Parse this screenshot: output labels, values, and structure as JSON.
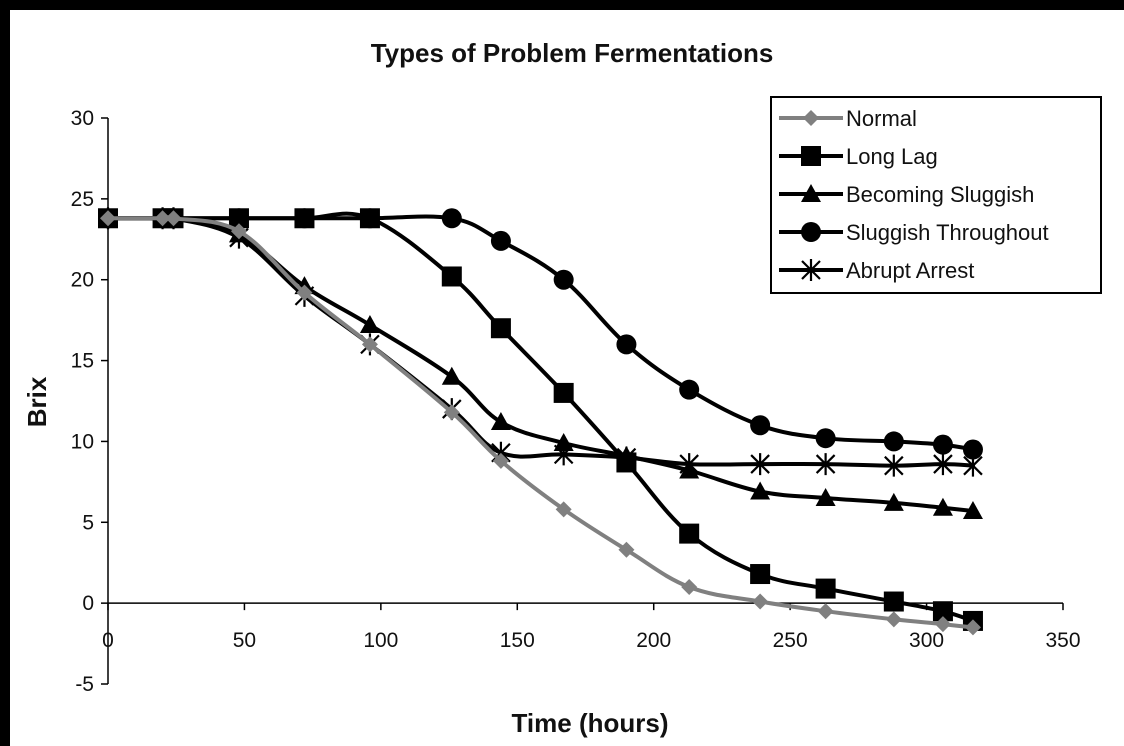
{
  "chart_data": {
    "type": "line",
    "title": "Types of Problem Fermentations",
    "xlabel": "Time (hours)",
    "ylabel": "Brix",
    "xlim": [
      0,
      350
    ],
    "ylim": [
      -5,
      30
    ],
    "xticks": [
      0,
      50,
      100,
      150,
      200,
      250,
      300,
      350
    ],
    "yticks": [
      30,
      25,
      20,
      15,
      10,
      5,
      0,
      -5
    ],
    "grid": false,
    "legend_position": "top-right",
    "series": [
      {
        "name": "Normal",
        "color": "#808080",
        "marker": "diamond",
        "x": [
          0,
          20,
          24,
          48,
          72,
          96,
          126,
          144,
          167,
          190,
          213,
          239,
          263,
          288,
          306,
          317
        ],
        "y": [
          23.8,
          23.8,
          23.8,
          23.0,
          19.2,
          16.0,
          11.8,
          8.8,
          5.8,
          3.3,
          1.0,
          0.1,
          -0.5,
          -1.0,
          -1.3,
          -1.5
        ]
      },
      {
        "name": "Long Lag",
        "color": "#000000",
        "marker": "square",
        "x": [
          0,
          20,
          24,
          48,
          72,
          96,
          126,
          144,
          167,
          190,
          213,
          239,
          263,
          288,
          306,
          317
        ],
        "y": [
          23.8,
          23.8,
          23.8,
          23.8,
          23.8,
          23.8,
          20.2,
          17.0,
          13.0,
          8.7,
          4.3,
          1.8,
          0.9,
          0.1,
          -0.5,
          -1.1
        ]
      },
      {
        "name": "Becoming Sluggish",
        "color": "#000000",
        "marker": "triangle",
        "x": [
          0,
          20,
          24,
          48,
          72,
          96,
          126,
          144,
          167,
          190,
          213,
          239,
          263,
          288,
          306,
          317
        ],
        "y": [
          23.8,
          23.8,
          23.8,
          22.8,
          19.6,
          17.2,
          14.0,
          11.2,
          9.9,
          9.1,
          8.2,
          6.9,
          6.5,
          6.2,
          5.9,
          5.7
        ]
      },
      {
        "name": "Sluggish Throughout",
        "color": "#000000",
        "marker": "circle",
        "x": [
          0,
          20,
          24,
          48,
          72,
          96,
          126,
          144,
          167,
          190,
          213,
          239,
          263,
          288,
          306,
          317
        ],
        "y": [
          23.8,
          23.8,
          23.8,
          23.8,
          23.8,
          23.8,
          23.8,
          22.4,
          20.0,
          16.0,
          13.2,
          11.0,
          10.2,
          10.0,
          9.8,
          9.5
        ]
      },
      {
        "name": "Abrupt Arrest",
        "color": "#000000",
        "marker": "asterisk",
        "x": [
          0,
          20,
          24,
          48,
          72,
          96,
          126,
          144,
          167,
          190,
          213,
          239,
          263,
          288,
          306,
          317
        ],
        "y": [
          23.8,
          23.8,
          23.8,
          22.6,
          19.0,
          16.0,
          12.0,
          9.3,
          9.2,
          9.0,
          8.6,
          8.6,
          8.6,
          8.5,
          8.6,
          8.5
        ]
      }
    ]
  }
}
